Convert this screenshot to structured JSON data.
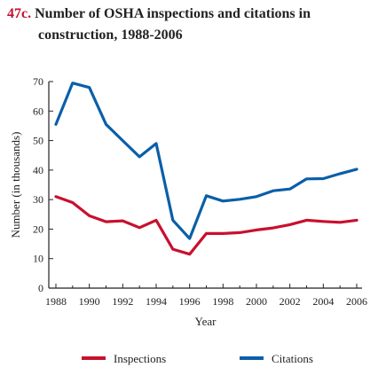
{
  "figure": {
    "number": "47c.",
    "title_line1": "Number of OSHA inspections and citations in",
    "title_line2": "construction, 1988-2006"
  },
  "chart_data": {
    "type": "line",
    "title": "Number of OSHA inspections and citations in construction, 1988-2006",
    "xlabel": "Year",
    "ylabel": "Number (in thousands)",
    "xlim": [
      1988,
      2006
    ],
    "ylim": [
      0,
      70
    ],
    "x_ticks": [
      "1988",
      "1990",
      "1992",
      "1994",
      "1996",
      "1998",
      "2000",
      "2002",
      "2004",
      "2006"
    ],
    "y_ticks": [
      "0",
      "10",
      "20",
      "30",
      "40",
      "50",
      "60",
      "70"
    ],
    "x": [
      1988,
      1989,
      1990,
      1991,
      1992,
      1993,
      1994,
      1995,
      1996,
      1997,
      1998,
      1999,
      2000,
      2001,
      2002,
      2003,
      2004,
      2005,
      2006
    ],
    "series": [
      {
        "name": "Inspections",
        "color": "#c8102e",
        "values": [
          31,
          29,
          24.5,
          22.5,
          22.8,
          20.5,
          23,
          13.2,
          11.5,
          18.5,
          18.5,
          18.8,
          19.7,
          20.4,
          21.5,
          23,
          22.6,
          22.3,
          23
        ]
      },
      {
        "name": "Citations",
        "color": "#0a5fa8",
        "values": [
          55.5,
          69.5,
          68,
          55.5,
          50,
          44.5,
          49,
          23,
          16.8,
          31.3,
          29.5,
          30.1,
          31,
          33,
          33.6,
          37,
          37.1,
          38.8,
          40.3
        ]
      }
    ],
    "grid": false,
    "legend_position": "bottom"
  }
}
